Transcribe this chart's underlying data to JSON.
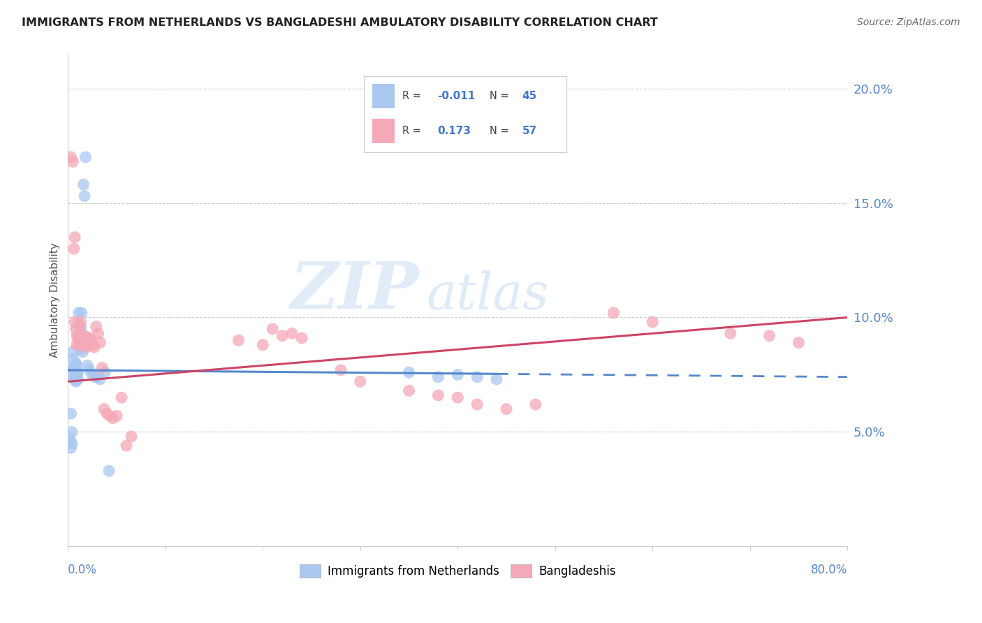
{
  "title": "IMMIGRANTS FROM NETHERLANDS VS BANGLADESHI AMBULATORY DISABILITY CORRELATION CHART",
  "source": "Source: ZipAtlas.com",
  "ylabel": "Ambulatory Disability",
  "yticks": [
    0.05,
    0.1,
    0.15,
    0.2
  ],
  "ytick_labels": [
    "5.0%",
    "10.0%",
    "15.0%",
    "20.0%"
  ],
  "xlim": [
    0.0,
    0.8
  ],
  "ylim": [
    0.0,
    0.215
  ],
  "netherlands_R": -0.011,
  "netherlands_N": 45,
  "bangladesh_R": 0.173,
  "bangladesh_N": 57,
  "netherlands_color": "#a8c8f0",
  "bangladesh_color": "#f5a8b8",
  "trend_netherlands_color": "#5588cc",
  "trend_bangladesh_color": "#cc4466",
  "watermark_zip": "ZIP",
  "watermark_atlas": "atlas",
  "netherlands_x": [
    0.002,
    0.003,
    0.003,
    0.004,
    0.004,
    0.005,
    0.005,
    0.005,
    0.006,
    0.006,
    0.007,
    0.007,
    0.007,
    0.008,
    0.008,
    0.008,
    0.009,
    0.009,
    0.009,
    0.01,
    0.01,
    0.011,
    0.011,
    0.012,
    0.012,
    0.013,
    0.013,
    0.014,
    0.015,
    0.016,
    0.017,
    0.018,
    0.02,
    0.022,
    0.025,
    0.028,
    0.03,
    0.033,
    0.038,
    0.042,
    0.35,
    0.38,
    0.4,
    0.42,
    0.44
  ],
  "netherlands_y": [
    0.047,
    0.043,
    0.058,
    0.05,
    0.045,
    0.078,
    0.082,
    0.085,
    0.077,
    0.074,
    0.078,
    0.076,
    0.073,
    0.074,
    0.072,
    0.08,
    0.076,
    0.073,
    0.079,
    0.076,
    0.073,
    0.097,
    0.102,
    0.088,
    0.086,
    0.096,
    0.094,
    0.102,
    0.085,
    0.158,
    0.153,
    0.17,
    0.079,
    0.077,
    0.075,
    0.074,
    0.074,
    0.073,
    0.076,
    0.033,
    0.076,
    0.074,
    0.075,
    0.074,
    0.073
  ],
  "bangladesh_x": [
    0.003,
    0.005,
    0.006,
    0.007,
    0.007,
    0.008,
    0.009,
    0.009,
    0.01,
    0.011,
    0.012,
    0.012,
    0.013,
    0.013,
    0.014,
    0.015,
    0.016,
    0.017,
    0.018,
    0.019,
    0.02,
    0.021,
    0.022,
    0.023,
    0.025,
    0.027,
    0.029,
    0.031,
    0.033,
    0.035,
    0.037,
    0.04,
    0.043,
    0.046,
    0.05,
    0.055,
    0.06,
    0.065,
    0.175,
    0.2,
    0.21,
    0.22,
    0.23,
    0.24,
    0.28,
    0.3,
    0.35,
    0.38,
    0.4,
    0.42,
    0.45,
    0.48,
    0.56,
    0.6,
    0.68,
    0.72,
    0.75
  ],
  "bangladesh_y": [
    0.17,
    0.168,
    0.13,
    0.135,
    0.098,
    0.095,
    0.092,
    0.088,
    0.091,
    0.088,
    0.096,
    0.09,
    0.098,
    0.091,
    0.09,
    0.088,
    0.09,
    0.092,
    0.091,
    0.087,
    0.091,
    0.088,
    0.09,
    0.091,
    0.088,
    0.087,
    0.096,
    0.093,
    0.089,
    0.078,
    0.06,
    0.058,
    0.057,
    0.056,
    0.057,
    0.065,
    0.044,
    0.048,
    0.09,
    0.088,
    0.095,
    0.092,
    0.093,
    0.091,
    0.077,
    0.072,
    0.068,
    0.066,
    0.065,
    0.062,
    0.06,
    0.062,
    0.102,
    0.098,
    0.093,
    0.092,
    0.089
  ]
}
